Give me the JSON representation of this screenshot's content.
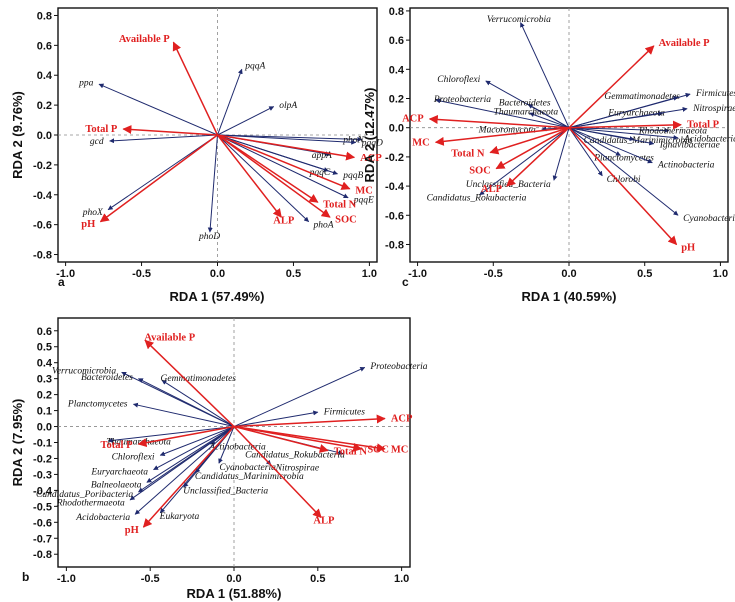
{
  "colors": {
    "env": "#e02020",
    "bio": "#1f2a6e",
    "frame": "#111111",
    "zero": "#8a8a8a"
  },
  "chart_data": [
    {
      "panel": "a",
      "type": "scatter",
      "subtype": "rda-biplot",
      "xlabel": "RDA 1 (57.49%)",
      "ylabel": "RDA 2 (9.76%)",
      "xlim": [
        -1.05,
        1.05
      ],
      "ylim": [
        -0.85,
        0.85
      ],
      "xticks": [
        "-1.0",
        "-0.5",
        "0.0",
        "0.5",
        "1.0"
      ],
      "xtick_values": [
        -1.0,
        -0.5,
        0.0,
        0.5,
        1.0
      ],
      "yticks": [
        "0.8",
        "0.6",
        "0.4",
        "0.2",
        "0.0",
        "-0.2",
        "-0.4",
        "-0.6",
        "-0.8"
      ],
      "ytick_values": [
        0.8,
        0.6,
        0.4,
        0.2,
        0.0,
        -0.2,
        -0.4,
        -0.6,
        -0.8
      ],
      "env_vectors": [
        {
          "label": "Available P",
          "x": -0.29,
          "y": 0.62,
          "anchor": "end"
        },
        {
          "label": "Total P",
          "x": -0.62,
          "y": 0.04,
          "anchor": "end"
        },
        {
          "label": "pH",
          "x": -0.77,
          "y": -0.58,
          "anchor": "end"
        },
        {
          "label": "ACP",
          "x": 0.9,
          "y": -0.15,
          "anchor": "start"
        },
        {
          "label": "MC",
          "x": 0.87,
          "y": -0.36,
          "anchor": "start"
        },
        {
          "label": "Total N",
          "x": 0.66,
          "y": -0.45,
          "anchor": "start"
        },
        {
          "label": "SOC",
          "x": 0.74,
          "y": -0.55,
          "anchor": "start"
        },
        {
          "label": "ALP",
          "x": 0.42,
          "y": -0.55,
          "anchor": "middle"
        }
      ],
      "species_vectors": [
        {
          "label": "ppa",
          "x": -0.78,
          "y": 0.34,
          "anchor": "end"
        },
        {
          "label": "pqqA",
          "x": 0.16,
          "y": 0.44,
          "anchor": "start"
        },
        {
          "label": "olpA",
          "x": 0.37,
          "y": 0.19,
          "anchor": "start"
        },
        {
          "label": "gcd",
          "x": -0.71,
          "y": -0.04,
          "anchor": "end"
        },
        {
          "label": "phoN",
          "x": 0.95,
          "y": -0.03,
          "anchor": "end"
        },
        {
          "label": "pqqD",
          "x": 0.91,
          "y": -0.05,
          "anchor": "start"
        },
        {
          "label": "appA",
          "x": 0.74,
          "y": -0.13,
          "anchor": "end"
        },
        {
          "label": "pqqC",
          "x": 0.73,
          "y": -0.24,
          "anchor": "end"
        },
        {
          "label": "pqqB",
          "x": 0.79,
          "y": -0.26,
          "anchor": "start"
        },
        {
          "label": "pqqE",
          "x": 0.86,
          "y": -0.42,
          "anchor": "start"
        },
        {
          "label": "phoA",
          "x": 0.6,
          "y": -0.58,
          "anchor": "start"
        },
        {
          "label": "phoX",
          "x": -0.72,
          "y": -0.5,
          "anchor": "end"
        },
        {
          "label": "phoD",
          "x": -0.05,
          "y": -0.65,
          "anchor": "middle"
        }
      ]
    },
    {
      "panel": "c",
      "type": "scatter",
      "subtype": "rda-biplot",
      "xlabel": "RDA 1 (40.59%)",
      "ylabel": "RDA 2 (12.47%)",
      "xlim": [
        -1.05,
        1.05
      ],
      "ylim": [
        -0.92,
        0.82
      ],
      "xticks": [
        "-1.0",
        "-0.5",
        "0.0",
        "0.5",
        "1.0"
      ],
      "xtick_values": [
        -1.0,
        -0.5,
        0.0,
        0.5,
        1.0
      ],
      "yticks": [
        "0.8",
        "0.6",
        "0.4",
        "0.2",
        "0.0",
        "-0.2",
        "-0.4",
        "-0.6",
        "-0.8"
      ],
      "ytick_values": [
        0.8,
        0.6,
        0.4,
        0.2,
        0.0,
        -0.2,
        -0.4,
        -0.6,
        -0.8
      ],
      "env_vectors": [
        {
          "label": "Available P",
          "x": 0.56,
          "y": 0.56,
          "anchor": "start"
        },
        {
          "label": "Total P",
          "x": 0.74,
          "y": 0.02,
          "anchor": "start"
        },
        {
          "label": "ACP",
          "x": -0.92,
          "y": 0.06,
          "anchor": "end"
        },
        {
          "label": "MC",
          "x": -0.88,
          "y": -0.1,
          "anchor": "end"
        },
        {
          "label": "Total N",
          "x": -0.52,
          "y": -0.17,
          "anchor": "end"
        },
        {
          "label": "SOC",
          "x": -0.48,
          "y": -0.28,
          "anchor": "end"
        },
        {
          "label": "ALP",
          "x": -0.41,
          "y": -0.4,
          "anchor": "end"
        },
        {
          "label": "pH",
          "x": 0.71,
          "y": -0.8,
          "anchor": "start"
        }
      ],
      "species_vectors": [
        {
          "label": "Verrucomicrobia",
          "x": -0.32,
          "y": 0.72,
          "anchor": "middle"
        },
        {
          "label": "Chloroflexi",
          "x": -0.55,
          "y": 0.32,
          "anchor": "end"
        },
        {
          "label": "Proteobacteria",
          "x": -0.88,
          "y": 0.19,
          "anchor": "start"
        },
        {
          "label": "Bacteroidetes",
          "x": -0.27,
          "y": 0.16,
          "anchor": "middle"
        },
        {
          "label": "Thaumarchaeota",
          "x": -0.26,
          "y": 0.1,
          "anchor": "middle"
        },
        {
          "label": "Mucoromycota",
          "x": -0.18,
          "y": -0.01,
          "anchor": "end"
        },
        {
          "label": "Gemmatimonadetes",
          "x": 0.72,
          "y": 0.21,
          "anchor": "end"
        },
        {
          "label": "Firmicutes",
          "x": 0.8,
          "y": 0.23,
          "anchor": "start"
        },
        {
          "label": "Euryarchaeota",
          "x": 0.62,
          "y": 0.1,
          "anchor": "end"
        },
        {
          "label": "Nitrospirae",
          "x": 0.78,
          "y": 0.13,
          "anchor": "start"
        },
        {
          "label": "Rhodothermaeota",
          "x": 0.66,
          "y": -0.02,
          "anchor": "middle"
        },
        {
          "label": "Candidatus_Marinimicrobia",
          "x": 0.43,
          "y": -0.08,
          "anchor": "middle"
        },
        {
          "label": "Acidobacteria",
          "x": 0.72,
          "y": -0.07,
          "anchor": "start"
        },
        {
          "label": "Ignavibacteriae",
          "x": 0.56,
          "y": -0.11,
          "anchor": "start"
        },
        {
          "label": "Planctomycetes",
          "x": 0.34,
          "y": -0.19,
          "anchor": "middle"
        },
        {
          "label": "Actinobacteria",
          "x": 0.55,
          "y": -0.24,
          "anchor": "start"
        },
        {
          "label": "Chlorobi",
          "x": 0.22,
          "y": -0.33,
          "anchor": "start"
        },
        {
          "label": "Unclassified_Bacteria",
          "x": -0.1,
          "y": -0.36,
          "anchor": "end"
        },
        {
          "label": "Candidatus_Rokubacteria",
          "x": -0.59,
          "y": -0.46,
          "anchor": "middle"
        },
        {
          "label": "Cyanobacteria",
          "x": 0.72,
          "y": -0.6,
          "anchor": "start"
        }
      ]
    },
    {
      "panel": "b",
      "type": "scatter",
      "subtype": "rda-biplot",
      "xlabel": "RDA 1 (51.88%)",
      "ylabel": "RDA 2 (7.95%)",
      "xlim": [
        -1.05,
        1.05
      ],
      "ylim": [
        -0.88,
        0.68
      ],
      "xticks": [
        "-1.0",
        "-0.5",
        "0.0",
        "0.5",
        "1.0"
      ],
      "xtick_values": [
        -1.0,
        -0.5,
        0.0,
        0.5,
        1.0
      ],
      "yticks": [
        "0.6",
        "0.5",
        "0.4",
        "0.3",
        "0.2",
        "0.1",
        "0.0",
        "-0.1",
        "-0.2",
        "-0.3",
        "-0.4",
        "-0.5",
        "-0.6",
        "-0.7",
        "-0.8"
      ],
      "ytick_values": [
        0.6,
        0.5,
        0.4,
        0.3,
        0.2,
        0.1,
        0.0,
        -0.1,
        -0.2,
        -0.3,
        -0.4,
        -0.5,
        -0.6,
        -0.7,
        -0.8
      ],
      "env_vectors": [
        {
          "label": "Available P",
          "x": -0.53,
          "y": 0.54,
          "anchor": "start"
        },
        {
          "label": "ACP",
          "x": 0.9,
          "y": 0.05,
          "anchor": "start"
        },
        {
          "label": "MC",
          "x": 0.9,
          "y": -0.14,
          "anchor": "start"
        },
        {
          "label": "SOC",
          "x": 0.76,
          "y": -0.14,
          "anchor": "start"
        },
        {
          "label": "Total N",
          "x": 0.56,
          "y": -0.15,
          "anchor": "start"
        },
        {
          "label": "Total P",
          "x": -0.57,
          "y": -0.11,
          "anchor": "end"
        },
        {
          "label": "ALP",
          "x": 0.52,
          "y": -0.57,
          "anchor": "middle"
        },
        {
          "label": "pH",
          "x": -0.54,
          "y": -0.63,
          "anchor": "end"
        }
      ],
      "species_vectors": [
        {
          "label": "Proteobacteria",
          "x": 0.78,
          "y": 0.37,
          "anchor": "start"
        },
        {
          "label": "Firmicutes",
          "x": 0.5,
          "y": 0.09,
          "anchor": "start"
        },
        {
          "label": "Verrucomicrobia",
          "x": -0.67,
          "y": 0.34,
          "anchor": "end"
        },
        {
          "label": "Bacteroidetes",
          "x": -0.57,
          "y": 0.3,
          "anchor": "end"
        },
        {
          "label": "Gemmatimonadetes",
          "x": -0.43,
          "y": 0.29,
          "anchor": "start"
        },
        {
          "label": "Planctomycetes",
          "x": -0.6,
          "y": 0.14,
          "anchor": "end"
        },
        {
          "label": "Thaumarchaeota",
          "x": -0.75,
          "y": -0.09,
          "anchor": "start"
        },
        {
          "label": "Chloroflexi",
          "x": -0.44,
          "y": -0.18,
          "anchor": "end"
        },
        {
          "label": "Actinobacteria",
          "x": -0.14,
          "y": -0.11,
          "anchor": "start"
        },
        {
          "label": "Cyanobacteria",
          "x": -0.09,
          "y": -0.23,
          "anchor": "start"
        },
        {
          "label": "Euryarchaeota",
          "x": -0.48,
          "y": -0.27,
          "anchor": "end"
        },
        {
          "label": "Balneolaeota",
          "x": -0.52,
          "y": -0.35,
          "anchor": "end"
        },
        {
          "label": "Candidatus_Poribacteria",
          "x": -0.57,
          "y": -0.41,
          "anchor": "end"
        },
        {
          "label": "Rhodothermaeota",
          "x": -0.62,
          "y": -0.46,
          "anchor": "end"
        },
        {
          "label": "Acidobacteria",
          "x": -0.59,
          "y": -0.55,
          "anchor": "end"
        },
        {
          "label": "Eukaryota",
          "x": -0.44,
          "y": -0.54,
          "anchor": "start"
        },
        {
          "label": "Candidatus_Marinimicrobia",
          "x": -0.23,
          "y": -0.29,
          "anchor": "start"
        },
        {
          "label": "Unclassified_Bacteria",
          "x": -0.3,
          "y": -0.38,
          "anchor": "start"
        },
        {
          "label": "Nitrospirae",
          "x": 0.22,
          "y": -0.24,
          "anchor": "start"
        },
        {
          "label": "Candidatus_Rokubacteria",
          "x": 0.65,
          "y": -0.17,
          "anchor": "end"
        }
      ]
    }
  ]
}
